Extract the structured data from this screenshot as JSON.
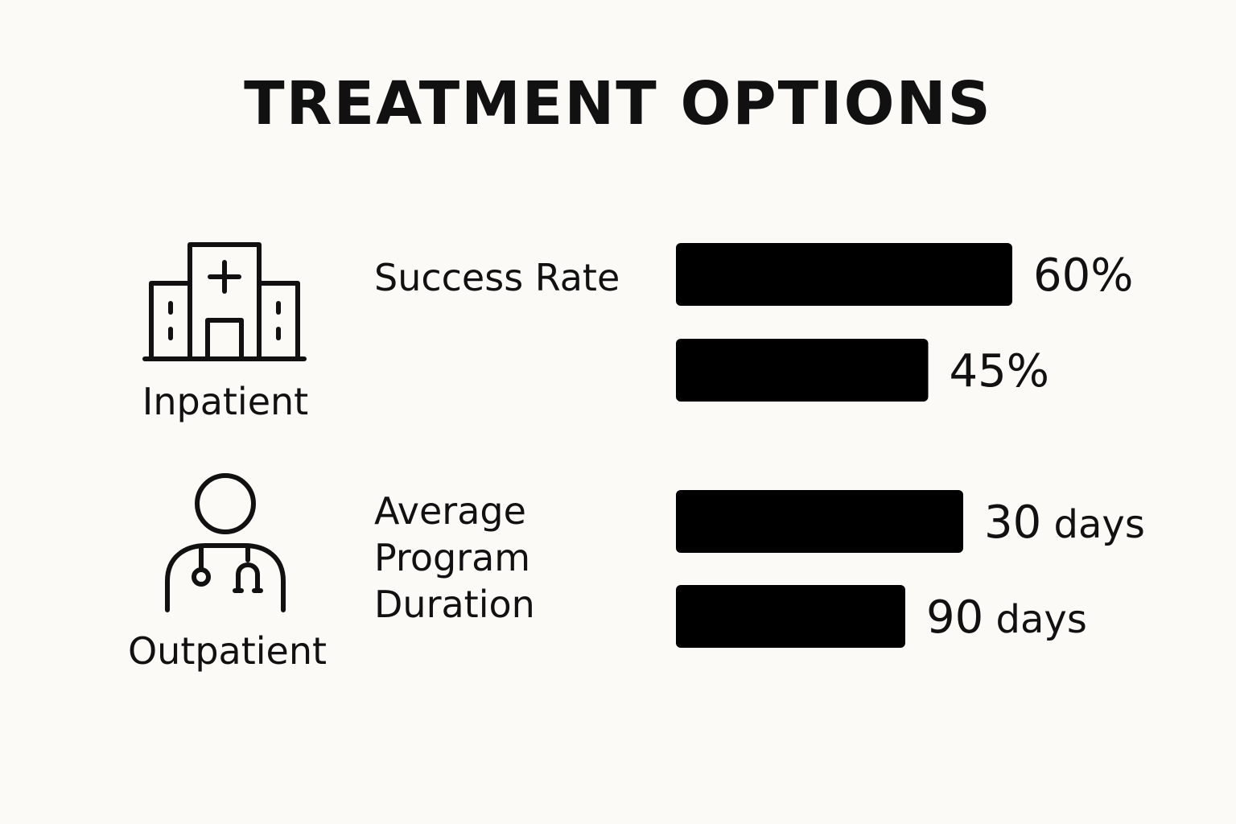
{
  "title": "TREATMENT OPTIONS",
  "colors": {
    "background": "#fbfaf6",
    "ink": "#111111",
    "bar": "#000000"
  },
  "icons": [
    {
      "name": "hospital-icon",
      "label": "Inpatient"
    },
    {
      "name": "doctor-stethoscope-icon",
      "label": "Outpatient"
    }
  ],
  "chart_data": {
    "type": "bar",
    "orientation": "horizontal",
    "groups": [
      {
        "label": "Success Rate",
        "bars": [
          {
            "category": "Inpatient",
            "value": 60,
            "display_number": "60",
            "display_unit": "%"
          },
          {
            "category": "Outpatient",
            "value": 45,
            "display_number": "45",
            "display_unit": "%"
          }
        ]
      },
      {
        "label": "Average Program Duration",
        "label_lines": [
          "Average",
          "Program",
          "Duration"
        ],
        "bars": [
          {
            "category": "Inpatient",
            "value": 30,
            "display_number": "30",
            "display_unit": "days"
          },
          {
            "category": "Outpatient",
            "value": 90,
            "display_number": "90",
            "display_unit": "days"
          }
        ]
      }
    ]
  }
}
